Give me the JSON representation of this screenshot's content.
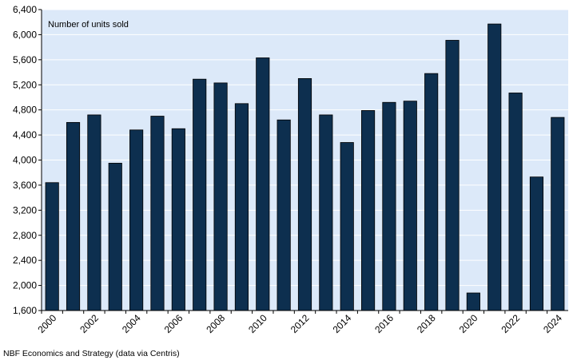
{
  "chart_data": {
    "type": "bar",
    "title": "",
    "ylabel": "Number of units sold",
    "xlabel": "",
    "ylim": [
      1600,
      6400
    ],
    "yticks": [
      1600,
      2000,
      2400,
      2800,
      3200,
      3600,
      4000,
      4400,
      4800,
      5200,
      5600,
      6000,
      6400
    ],
    "ytick_labels": [
      "1,600",
      "2,000",
      "2,400",
      "2,800",
      "3,200",
      "3,600",
      "4,000",
      "4,400",
      "4,800",
      "5,200",
      "5,600",
      "6,000",
      "6,400"
    ],
    "categories": [
      "2000",
      "2001",
      "2002",
      "2003",
      "2004",
      "2005",
      "2006",
      "2007",
      "2008",
      "2009",
      "2010",
      "2011",
      "2012",
      "2013",
      "2014",
      "2015",
      "2016",
      "2017",
      "2018",
      "2019",
      "2020",
      "2021",
      "2022",
      "2023",
      "2024"
    ],
    "xtick_labels": [
      "2000",
      "2002",
      "2004",
      "2006",
      "2008",
      "2010",
      "2012",
      "2014",
      "2016",
      "2018",
      "2020",
      "2022",
      "2024"
    ],
    "values": [
      3640,
      4600,
      4720,
      3950,
      4480,
      4700,
      4500,
      5290,
      5230,
      4900,
      5630,
      4640,
      5300,
      4720,
      4280,
      4790,
      4920,
      4940,
      5380,
      5910,
      1880,
      6170,
      5070,
      3730,
      4680
    ],
    "grid": true,
    "colors": {
      "bar": "#0d2f4f",
      "plot_background": "#dce9f9",
      "grid": "#ffffff"
    }
  },
  "source": "NBF Economics and Strategy (data via Centris)"
}
